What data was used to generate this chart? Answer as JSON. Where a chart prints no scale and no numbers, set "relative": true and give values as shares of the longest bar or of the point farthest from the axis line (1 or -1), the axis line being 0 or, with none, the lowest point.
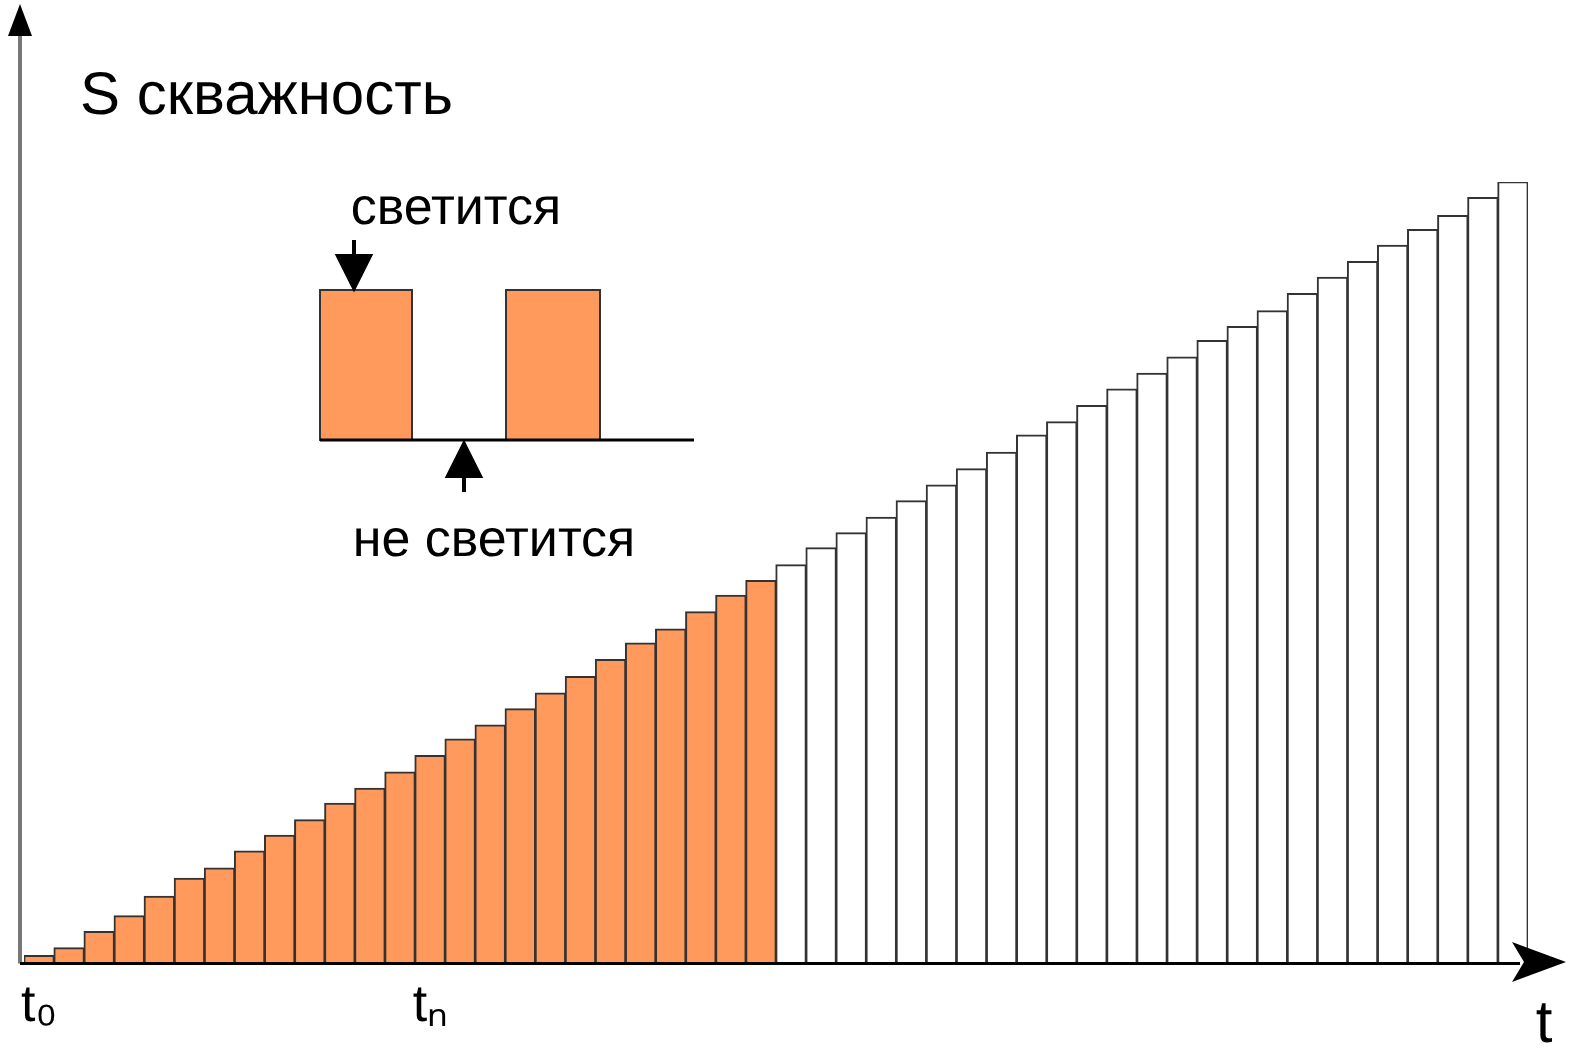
{
  "chart_data": {
    "type": "bar",
    "relative": true,
    "xlabel": "t",
    "ylabel": "S скважность",
    "categories": [
      "t₀",
      null,
      null,
      null,
      null,
      null,
      null,
      null,
      null,
      null,
      null,
      null,
      null,
      "tₙ",
      null,
      null,
      null,
      null,
      null,
      null,
      null,
      null,
      null,
      null,
      null,
      null,
      null,
      null,
      null,
      null,
      null,
      null,
      null,
      null,
      null,
      null,
      null,
      null,
      null,
      null,
      null,
      null,
      null,
      null,
      null,
      null,
      null,
      null,
      null,
      null
    ],
    "values": [
      0.01,
      0.02,
      0.041,
      0.061,
      0.086,
      0.109,
      0.122,
      0.144,
      0.164,
      0.184,
      0.205,
      0.224,
      0.245,
      0.266,
      0.287,
      0.305,
      0.326,
      0.346,
      0.367,
      0.389,
      0.41,
      0.428,
      0.45,
      0.471,
      0.49,
      0.51,
      0.532,
      0.551,
      0.571,
      0.592,
      0.612,
      0.633,
      0.654,
      0.676,
      0.693,
      0.714,
      0.735,
      0.755,
      0.776,
      0.797,
      0.815,
      0.835,
      0.857,
      0.878,
      0.898,
      0.919,
      0.939,
      0.957,
      0.98,
      1
    ],
    "colors": [
      "#ff9a5c",
      "#ff9a5c",
      "#ff9a5c",
      "#ff9a5c",
      "#ff9a5c",
      "#ff9a5c",
      "#ff9a5c",
      "#ff9a5c",
      "#ff9a5c",
      "#ff9a5c",
      "#ff9a5c",
      "#ff9a5c",
      "#ff9a5c",
      "#ff9a5c",
      "#ff9a5c",
      "#ff9a5c",
      "#ff9a5c",
      "#ff9a5c",
      "#ff9a5c",
      "#ff9a5c",
      "#ff9a5c",
      "#ff9a5c",
      "#ff9a5c",
      "#ff9a5c",
      "#ff9a5c",
      "#ffffff",
      "#ffffff",
      "#ffffff",
      "#ffffff",
      "#ffffff",
      "#ffffff",
      "#ffffff",
      "#ffffff",
      "#ffffff",
      "#ffffff",
      "#ffffff",
      "#ffffff",
      "#ffffff",
      "#ffffff",
      "#ffffff",
      "#ffffff",
      "#ffffff",
      "#ffffff",
      "#ffffff",
      "#ffffff",
      "#ffffff",
      "#ffffff",
      "#ffffff",
      "#ffffff",
      "#ffffff"
    ],
    "annotations": [
      "светится",
      "не светится"
    ],
    "grid": false,
    "legend": false
  }
}
